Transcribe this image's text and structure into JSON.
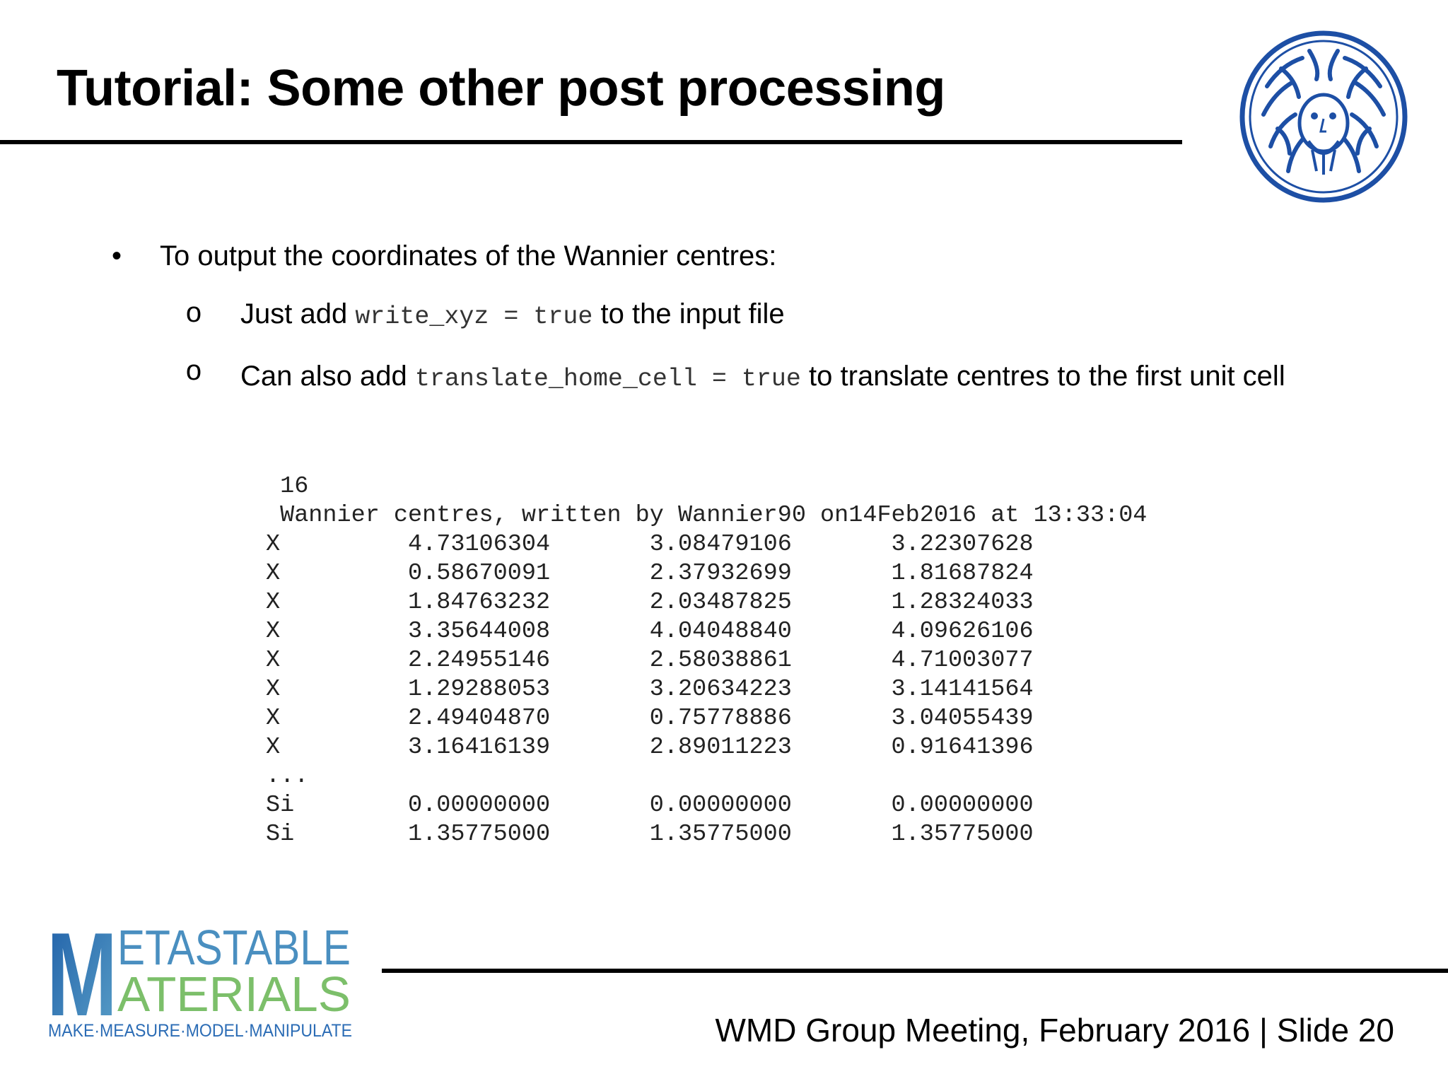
{
  "slide": {
    "title": "Tutorial: Some other post processing",
    "bullets": {
      "main_marker": "•",
      "main_text": "To output the coordinates of the Wannier centres:",
      "sub_marker": "o",
      "sub1_pre": "Just add ",
      "sub1_code": "write_xyz = true",
      "sub1_post": " to the input file",
      "sub2_pre": "Can also add ",
      "sub2_code": "translate_home_cell = true",
      "sub2_post": " to translate centres to the first unit cell"
    },
    "xyz_file": {
      "count": "16",
      "comment": "Wannier centres, written by Wannier90 on14Feb2016 at 13:33:04",
      "rows": [
        {
          "atom": "X",
          "x": "4.73106304",
          "y": "3.08479106",
          "z": "3.22307628"
        },
        {
          "atom": "X",
          "x": "0.58670091",
          "y": "2.37932699",
          "z": "1.81687824"
        },
        {
          "atom": "X",
          "x": "1.84763232",
          "y": "2.03487825",
          "z": "1.28324033"
        },
        {
          "atom": "X",
          "x": "3.35644008",
          "y": "4.04048840",
          "z": "4.09626106"
        },
        {
          "atom": "X",
          "x": "2.24955146",
          "y": "2.58038861",
          "z": "4.71003077"
        },
        {
          "atom": "X",
          "x": "1.29288053",
          "y": "3.20634223",
          "z": "3.14141564"
        },
        {
          "atom": "X",
          "x": "2.49404870",
          "y": "0.75778886",
          "z": "3.04055439"
        },
        {
          "atom": "X",
          "x": "3.16416139",
          "y": "2.89011223",
          "z": "0.91641396"
        }
      ],
      "ellipsis": "...",
      "rows_after": [
        {
          "atom": "Si",
          "x": "0.00000000",
          "y": "0.00000000",
          "z": "0.00000000"
        },
        {
          "atom": "Si",
          "x": "1.35775000",
          "y": "1.35775000",
          "z": "1.35775000"
        }
      ]
    },
    "footer": "WMD Group Meeting, February 2016 | Slide 20",
    "logo": {
      "line1": "ETASTABLE",
      "line2": "ATERIALS",
      "big_letter": "M",
      "tagline": "MAKE·MEASURE·MODEL·MANIPULATE"
    },
    "seal_icon": "university-seal-icon",
    "colors": {
      "seal_blue": "#1d4fa5",
      "logo_blue": "#2b6cb5",
      "logo_green": "#7cbf6a",
      "rule": "#000000"
    }
  }
}
